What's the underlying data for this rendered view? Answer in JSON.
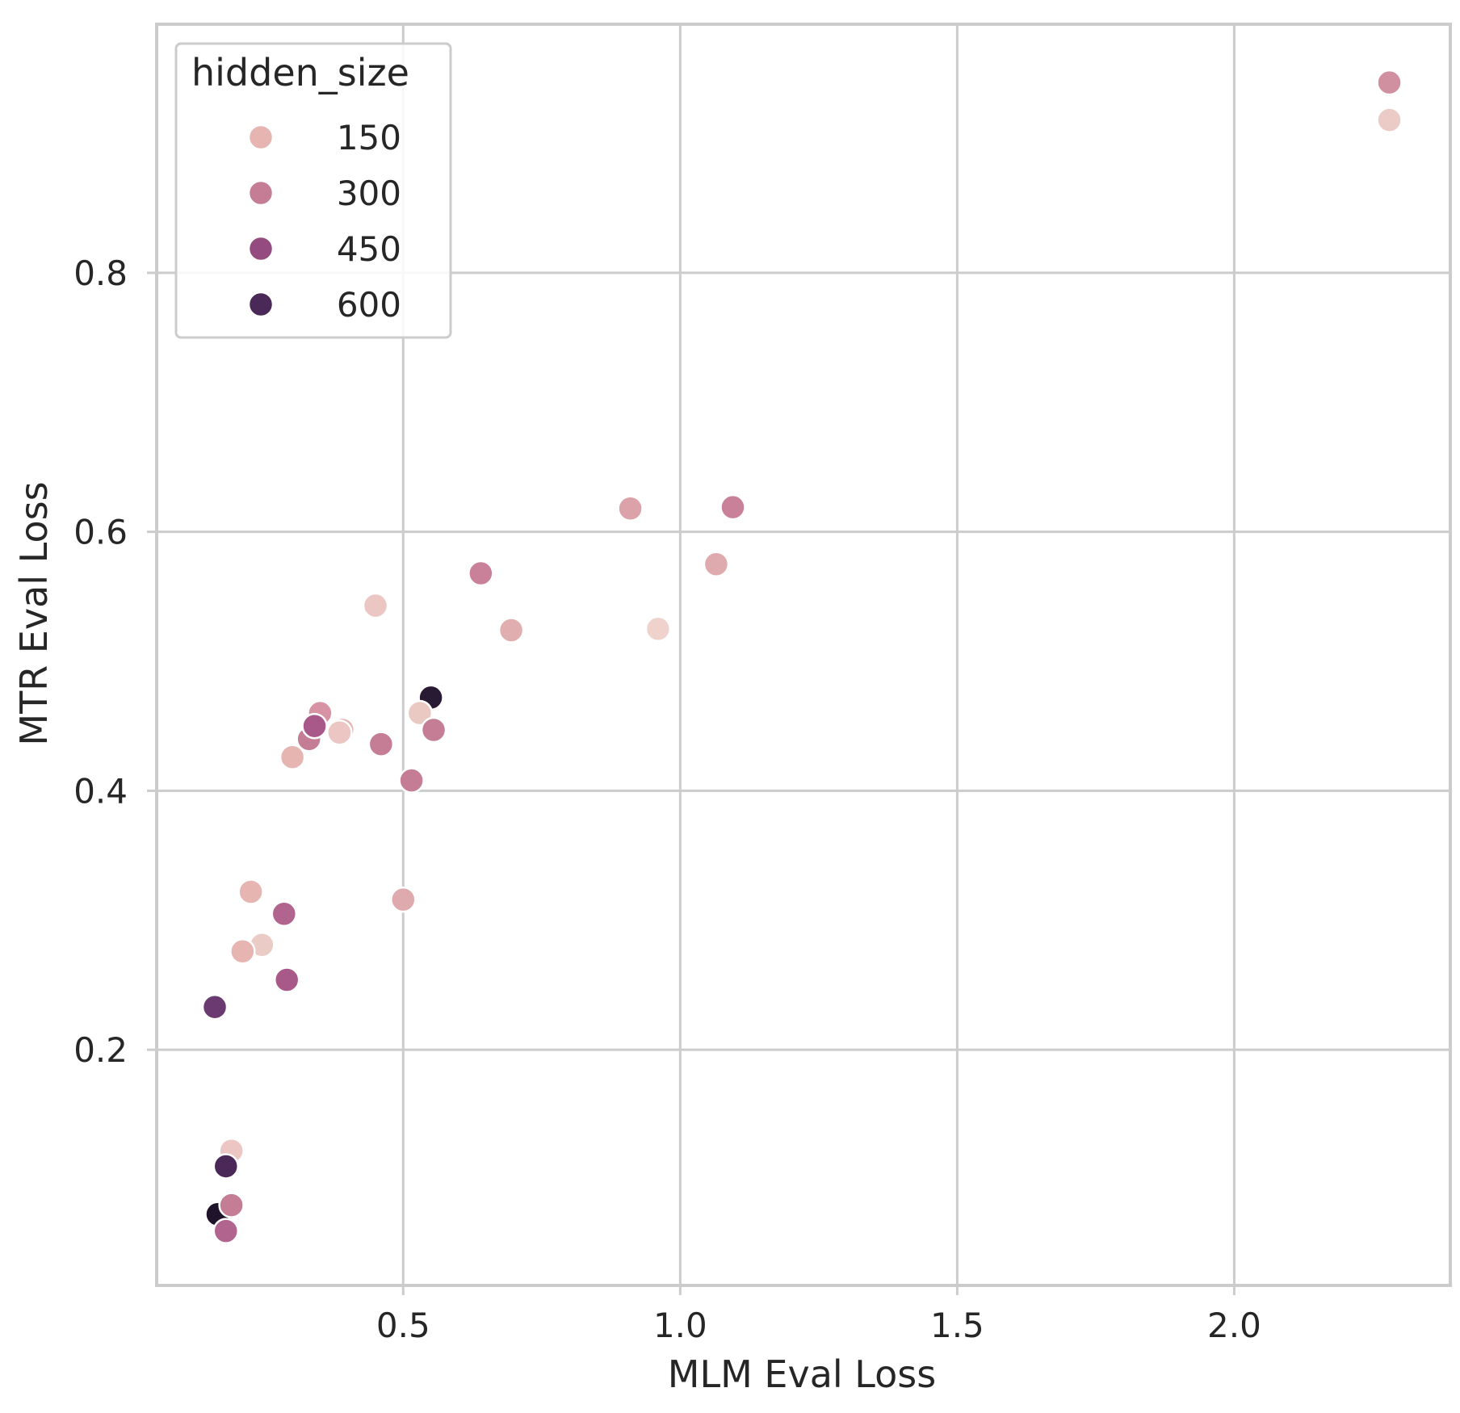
{
  "chart_data": {
    "type": "scatter",
    "xlabel": "MLM Eval Loss",
    "ylabel": "MTR Eval Loss",
    "xlim": [
      0.055,
      2.39
    ],
    "ylim": [
      0.018,
      0.992
    ],
    "xticks": [
      0.5,
      1.0,
      1.5,
      2.0
    ],
    "xtick_labels": [
      "0.5",
      "1.0",
      "1.5",
      "2.0"
    ],
    "yticks": [
      0.2,
      0.4,
      0.6,
      0.8
    ],
    "ytick_labels": [
      "0.2",
      "0.4",
      "0.6",
      "0.8"
    ],
    "grid": true,
    "legend": {
      "title": "hidden_size",
      "placement": "top-left",
      "entries": [
        {
          "label": "150",
          "color": "#e6b5b2"
        },
        {
          "label": "300",
          "color": "#c47d95"
        },
        {
          "label": "450",
          "color": "#934b80"
        },
        {
          "label": "600",
          "color": "#4a2857"
        }
      ]
    },
    "points": [
      {
        "x": 2.28,
        "y": 0.947,
        "color": "#d0909f"
      },
      {
        "x": 2.28,
        "y": 0.918,
        "color": "#ebcbc6"
      },
      {
        "x": 0.91,
        "y": 0.618,
        "color": "#dba2aa"
      },
      {
        "x": 1.095,
        "y": 0.619,
        "color": "#c9819a"
      },
      {
        "x": 1.065,
        "y": 0.575,
        "color": "#dfaaae"
      },
      {
        "x": 0.64,
        "y": 0.568,
        "color": "#c9819a"
      },
      {
        "x": 0.45,
        "y": 0.543,
        "color": "#ebc6c2"
      },
      {
        "x": 0.695,
        "y": 0.524,
        "color": "#e1aeb0"
      },
      {
        "x": 0.96,
        "y": 0.525,
        "color": "#efd2cc"
      },
      {
        "x": 0.55,
        "y": 0.472,
        "color": "#291a33"
      },
      {
        "x": 0.53,
        "y": 0.46,
        "color": "#ebc9c3"
      },
      {
        "x": 0.35,
        "y": 0.46,
        "color": "#d793a3"
      },
      {
        "x": 0.39,
        "y": 0.447,
        "color": "#e1b0b0"
      },
      {
        "x": 0.385,
        "y": 0.445,
        "color": "#ebc6c2"
      },
      {
        "x": 0.33,
        "y": 0.44,
        "color": "#c47d95"
      },
      {
        "x": 0.34,
        "y": 0.45,
        "color": "#a8598a"
      },
      {
        "x": 0.46,
        "y": 0.436,
        "color": "#c47d95"
      },
      {
        "x": 0.555,
        "y": 0.447,
        "color": "#c47d95"
      },
      {
        "x": 0.3,
        "y": 0.426,
        "color": "#e6b5b2"
      },
      {
        "x": 0.515,
        "y": 0.408,
        "color": "#c47d95"
      },
      {
        "x": 0.225,
        "y": 0.322,
        "color": "#e6b5b2"
      },
      {
        "x": 0.5,
        "y": 0.316,
        "color": "#dfaaae"
      },
      {
        "x": 0.285,
        "y": 0.305,
        "color": "#b0648e"
      },
      {
        "x": 0.245,
        "y": 0.281,
        "color": "#ebcbc6"
      },
      {
        "x": 0.21,
        "y": 0.276,
        "color": "#e6b5b2"
      },
      {
        "x": 0.29,
        "y": 0.254,
        "color": "#a8598a"
      },
      {
        "x": 0.16,
        "y": 0.233,
        "color": "#6a3a70"
      },
      {
        "x": 0.19,
        "y": 0.122,
        "color": "#ebc6c2"
      },
      {
        "x": 0.18,
        "y": 0.11,
        "color": "#4a2857"
      },
      {
        "x": 0.165,
        "y": 0.073,
        "color": "#1f1329"
      },
      {
        "x": 0.19,
        "y": 0.08,
        "color": "#c47d95"
      },
      {
        "x": 0.18,
        "y": 0.06,
        "color": "#b0648e"
      }
    ]
  }
}
